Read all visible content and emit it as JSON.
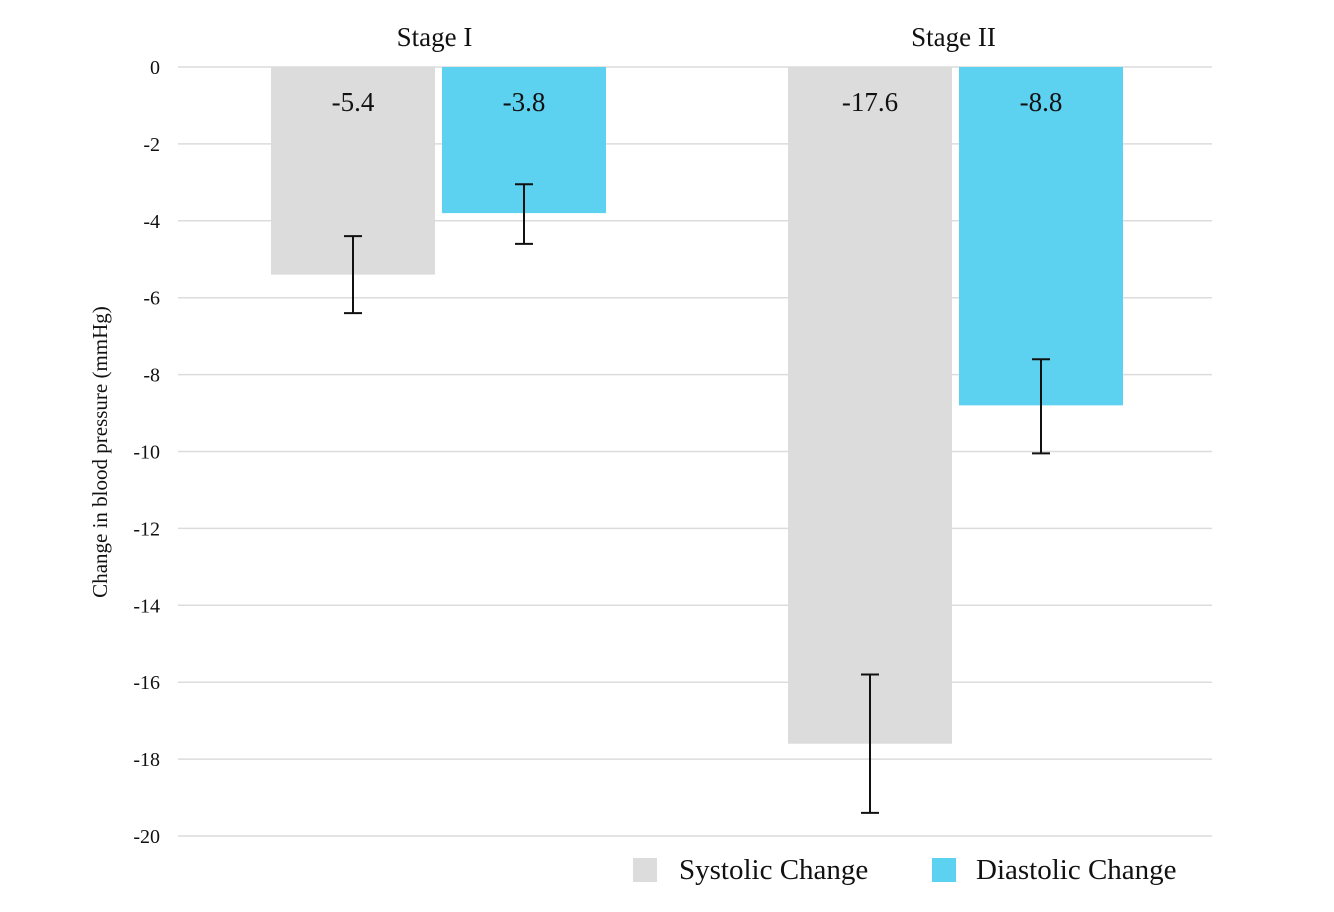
{
  "chart_data": {
    "type": "bar",
    "title": "",
    "xlabel": "",
    "ylabel": "Change in blood pressure (mmHg)",
    "categories": [
      "Stage I",
      "Stage II"
    ],
    "ylim": [
      -20,
      0
    ],
    "yticks": [
      0,
      -2,
      -4,
      -6,
      -8,
      -10,
      -12,
      -14,
      -16,
      -18,
      -20
    ],
    "category_axis_position": "top",
    "grid": true,
    "legend_position": "bottom-right",
    "series": [
      {
        "name": "Systolic Change",
        "color": "#dcdcdc",
        "values": [
          -5.4,
          -17.6
        ],
        "value_labels": [
          "-5.4",
          "-17.6"
        ],
        "error_low": [
          -6.4,
          -19.4
        ],
        "error_high": [
          -4.4,
          -15.8
        ]
      },
      {
        "name": "Diastolic Change",
        "color": "#5dd1f0",
        "values": [
          -3.8,
          -8.8
        ],
        "value_labels": [
          "-3.8",
          "-8.8"
        ],
        "error_low": [
          -4.6,
          -10.05
        ],
        "error_high": [
          -3.05,
          -7.6
        ]
      }
    ]
  }
}
